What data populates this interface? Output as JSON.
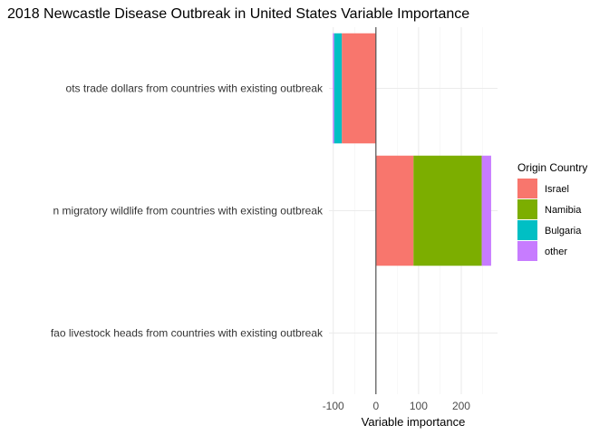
{
  "chart_data": {
    "type": "bar",
    "orientation": "horizontal",
    "stacked": true,
    "title": "2018 Newcastle Disease Outbreak in United States Variable Importance",
    "xlabel": "Variable importance",
    "ylabel": "",
    "xlim": [
      -110,
      285
    ],
    "xticks": [
      -100,
      0,
      100,
      200
    ],
    "xtick_labels": [
      "-100",
      "0",
      "100",
      "200"
    ],
    "grid": true,
    "legend": {
      "title": "Origin Country",
      "position": "right"
    },
    "categories": [
      "ots trade dollars from countries with existing outbreak",
      "n migratory wildlife from countries with existing outbreak",
      "fao livestock heads from countries with existing outbreak"
    ],
    "series": [
      {
        "name": "Israel",
        "color": "#F8766D",
        "values": [
          -80,
          88,
          0
        ]
      },
      {
        "name": "Namibia",
        "color": "#7CAE00",
        "values": [
          0,
          160,
          0
        ]
      },
      {
        "name": "Bulgaria",
        "color": "#00BFC4",
        "values": [
          -18,
          0,
          0
        ]
      },
      {
        "name": "other",
        "color": "#C77CFF",
        "values": [
          -3,
          22,
          0
        ]
      }
    ],
    "zero_line": true
  }
}
